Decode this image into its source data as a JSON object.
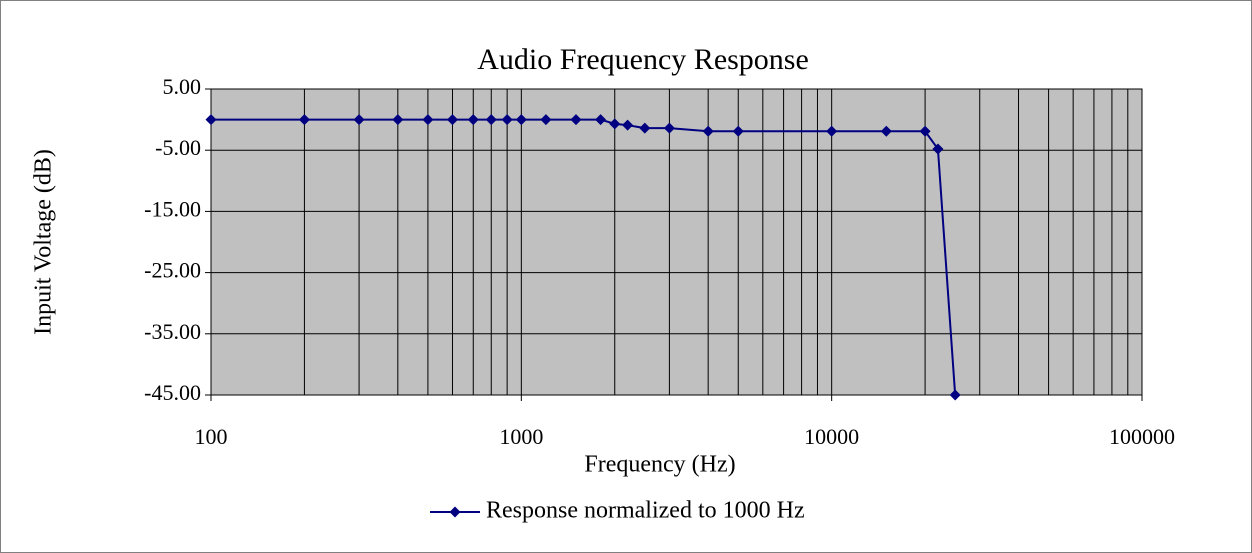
{
  "chart_data": {
    "type": "line",
    "title": "Audio Frequency Response",
    "x_label": "Frequency (Hz)",
    "y_label": "Inpuit Voltage (dB)",
    "log_x": true,
    "grid": true,
    "legend": "bottom",
    "x": [
      100,
      200,
      300,
      400,
      500,
      600,
      700,
      800,
      900,
      1000,
      1200,
      1500,
      1800,
      2000,
      2200,
      2500,
      3000,
      4000,
      5000,
      10000,
      15000,
      20000,
      22000,
      25000
    ],
    "series": [
      {
        "name": "Response normalized to 1000 Hz",
        "color": "#000080",
        "values": [
          0,
          0,
          0,
          0,
          0,
          0,
          0,
          0,
          0,
          0,
          0,
          0,
          0,
          -0.7,
          -0.9,
          -1.4,
          -1.4,
          -1.9,
          -1.9,
          -1.9,
          -1.9,
          -1.9,
          -4.8,
          -45
        ]
      }
    ],
    "xlim": [
      100,
      100000
    ],
    "xticks": [
      100,
      1000,
      10000,
      100000
    ],
    "ylim": [
      -45,
      5
    ],
    "yticks": [
      {
        "value": 5,
        "label": "5.00"
      },
      {
        "value": -5,
        "label": "-5.00"
      },
      {
        "value": -15,
        "label": "-15.00"
      },
      {
        "value": -25,
        "label": "-25.00"
      },
      {
        "value": -35,
        "label": "-35.00"
      },
      {
        "value": -45,
        "label": "-45.00"
      }
    ],
    "plot_background": "#c0c0c0"
  }
}
